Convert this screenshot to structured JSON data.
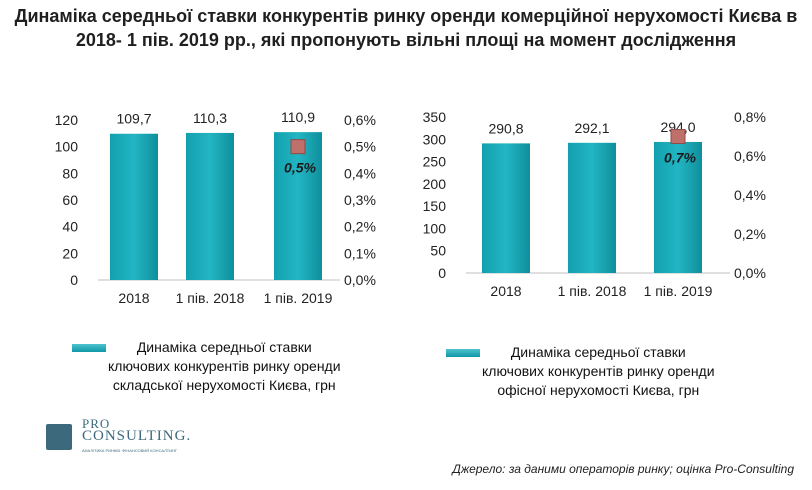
{
  "title": "Динаміка середньої ставки конкурентів ринку оренди комерційної нерухомості Києва в 2018- 1 пів. 2019 рр., які пропонують вільні площі на момент дослідження",
  "source": "Джерело: за даними операторів ринку; оцінка Pro-Consulting",
  "logo": {
    "line1": "PRO",
    "line2": "CONSULTING.",
    "tagline": "АНАЛІТИКА РИНКІВ. ФІНАНСОВИЙ КОНСАЛТИНГ"
  },
  "colors": {
    "bar": "#19a3b2",
    "bar_dark": "#0f8f9c",
    "marker": "#c0706a",
    "marker_border": "#8e4a46"
  },
  "chart_data": [
    {
      "type": "bar",
      "categories": [
        "2018",
        "1 пів. 2018",
        "1 пів. 2019"
      ],
      "series": [
        {
          "name": "Динаміка середньої ставки ключових конкурентів ринку оренди складської нерухомості Києва, грн",
          "values": [
            109.7,
            110.3,
            110.9
          ],
          "labels": [
            "109,7",
            "110,3",
            "110,9"
          ]
        },
        {
          "values": [
            null,
            null,
            0.5
          ],
          "labels": [
            "",
            "",
            "0,5%"
          ],
          "axis": "secondary"
        }
      ],
      "ylim": [
        0,
        120
      ],
      "yticks": [
        "0",
        "20",
        "40",
        "60",
        "80",
        "100",
        "120"
      ],
      "y2lim": [
        0,
        0.6
      ],
      "y2ticks": [
        "0,0%",
        "0,1%",
        "0,2%",
        "0,3%",
        "0,4%",
        "0,5%",
        "0,6%"
      ],
      "legend_lines": [
        "Динаміка середньої ставки",
        "ключових конкурентів ринку оренди",
        "складської нерухомості Києва, грн"
      ],
      "grid": false
    },
    {
      "type": "bar",
      "categories": [
        "2018",
        "1 пів. 2018",
        "1 пів. 2019"
      ],
      "series": [
        {
          "name": "Динаміка середньої ставки ключових конкурентів ринку оренди офісної нерухомості Києва, грн",
          "values": [
            290.8,
            292.1,
            294.0
          ],
          "labels": [
            "290,8",
            "292,1",
            "294,0"
          ]
        },
        {
          "values": [
            null,
            null,
            0.7
          ],
          "labels": [
            "",
            "",
            "0,7%"
          ],
          "axis": "secondary"
        }
      ],
      "ylim": [
        0,
        350
      ],
      "yticks": [
        "0",
        "50",
        "100",
        "150",
        "200",
        "250",
        "300",
        "350"
      ],
      "y2lim": [
        0,
        0.8
      ],
      "y2ticks": [
        "0,0%",
        "0,2%",
        "0,4%",
        "0,6%",
        "0,8%"
      ],
      "legend_lines": [
        "Динаміка середньої ставки",
        "ключових конкурентів ринку оренди",
        "офісної нерухомості Києва, грн"
      ],
      "grid": false
    }
  ]
}
